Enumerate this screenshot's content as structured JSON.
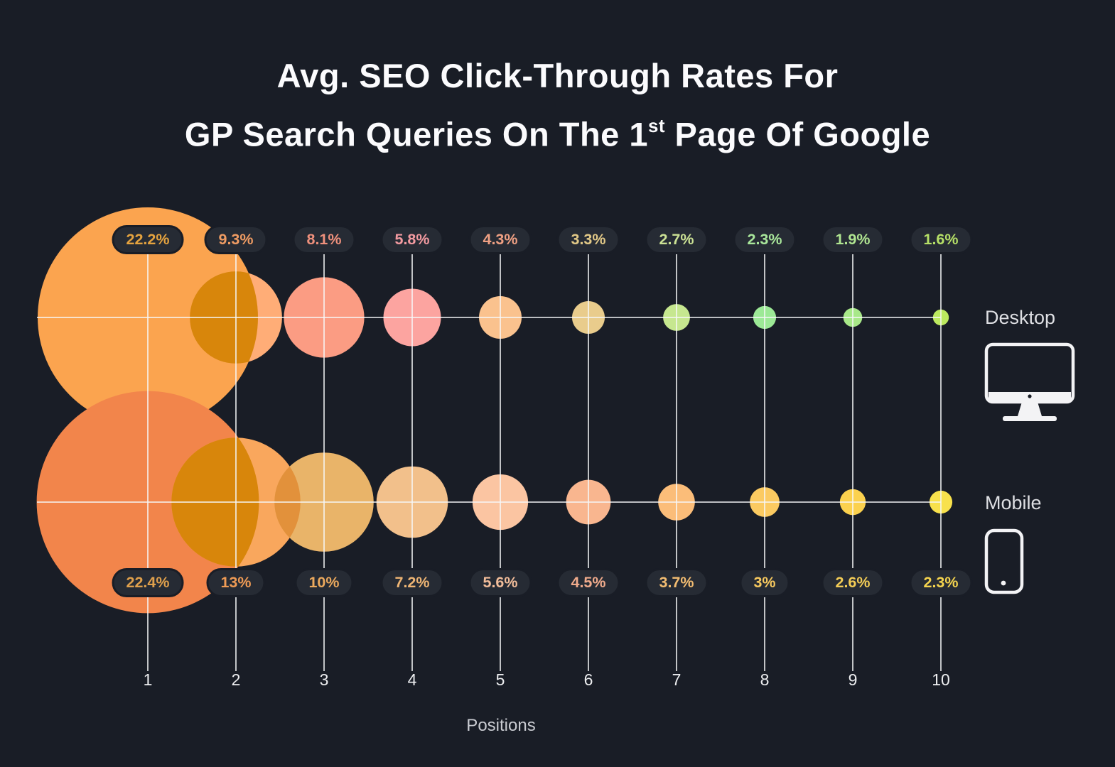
{
  "title": {
    "line1": "Avg. SEO Click-Through Rates For",
    "line2_pre": "GP Search Queries On The 1",
    "line2_sup": "st",
    "line2_post": " Page Of Google"
  },
  "axis": {
    "positions": [
      "1",
      "2",
      "3",
      "4",
      "5",
      "6",
      "7",
      "8",
      "9",
      "10"
    ],
    "xlabel": "Positions"
  },
  "legend": {
    "desktop_label": "Desktop",
    "mobile_label": "Mobile"
  },
  "colors": {
    "background": "#191D26",
    "pill_background": "#262B34",
    "grid_line": "#F6F7F8",
    "title_text": "#FBFBFD",
    "icon_stroke": "#F3F3F5"
  },
  "chart_data": {
    "type": "bubble",
    "title": "Avg. SEO Click-Through Rates For GP Search Queries On The 1st Page Of Google",
    "xlabel": "Positions",
    "x": [
      1,
      2,
      3,
      4,
      5,
      6,
      7,
      8,
      9,
      10
    ],
    "legend_position": "right",
    "series": [
      {
        "name": "Desktop",
        "values": [
          22.2,
          9.3,
          8.1,
          5.8,
          4.3,
          3.3,
          2.7,
          2.3,
          1.9,
          1.6
        ],
        "labels": [
          "22.2%",
          "9.3%",
          "8.1%",
          "5.8%",
          "4.3%",
          "3.3%",
          "2.7%",
          "2.3%",
          "1.9%",
          "1.6%"
        ],
        "bubble_colors": [
          "#FBA44F",
          "#FFAD77",
          "#FB9C83",
          "#FCA4A0",
          "#FAC28E",
          "#E9CC8C",
          "#C6E78F",
          "#9CE996",
          "#A8E888",
          "#BCE95F"
        ],
        "label_colors": [
          "#E5A33F",
          "#F09C63",
          "#EE907C",
          "#F29AA0",
          "#EFA083",
          "#E2C987",
          "#CCE295",
          "#A9E79B",
          "#B0E591",
          "#B6E067"
        ]
      },
      {
        "name": "Mobile",
        "values": [
          22.4,
          13,
          10,
          7.2,
          5.6,
          4.5,
          3.7,
          3,
          2.6,
          2.3
        ],
        "labels": [
          "22.4%",
          "13%",
          "10%",
          "7.2%",
          "5.6%",
          "4.5%",
          "3.7%",
          "3%",
          "2.6%",
          "2.3%"
        ],
        "bubble_colors": [
          "#F2854B",
          "#F9A75D",
          "#E9B469",
          "#F2C08B",
          "#FBC5A2",
          "#F9B68F",
          "#FBBD79",
          "#FBCA61",
          "#FBD14E",
          "#F8E14C"
        ],
        "label_colors": [
          "#DFA04C",
          "#EF9B55",
          "#EBA95D",
          "#EEB574",
          "#F2BD9A",
          "#F0AB8C",
          "#F3BD72",
          "#F7C95F",
          "#F3CC56",
          "#F5D44E"
        ]
      }
    ],
    "overlaps": [
      {
        "series": 0,
        "a": 0,
        "b": 1,
        "color": "#D8860B"
      },
      {
        "series": 1,
        "a": 0,
        "b": 1,
        "color": "#D8860B"
      },
      {
        "series": 1,
        "a": 1,
        "b": 2,
        "color": "#E2913B"
      }
    ]
  }
}
